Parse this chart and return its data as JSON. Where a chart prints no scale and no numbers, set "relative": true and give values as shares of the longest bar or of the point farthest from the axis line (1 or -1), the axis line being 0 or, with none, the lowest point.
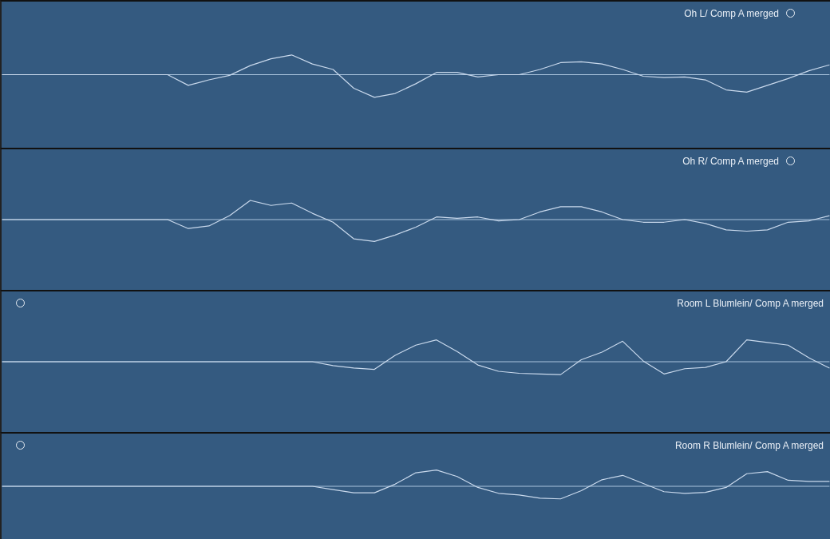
{
  "chart_data": [
    {
      "type": "line",
      "title": "Oh L/ Comp A merged",
      "relative": true,
      "marker": "none",
      "categories": [
        null,
        null,
        null,
        null,
        null,
        null,
        null,
        null,
        null,
        null,
        null,
        null,
        null,
        null,
        null,
        null,
        null,
        null,
        null,
        null,
        null,
        null,
        null,
        null,
        null,
        null,
        null,
        null,
        null,
        null,
        null,
        null,
        null,
        null,
        null,
        null,
        null,
        null,
        null,
        null,
        null
      ],
      "series": [
        {
          "color": "#c9d9ec",
          "values": [
            0,
            0,
            0,
            0,
            0,
            0,
            0,
            0,
            0,
            -0.47,
            -0.23,
            -0.03,
            0.4,
            0.7,
            0.87,
            0.47,
            0.23,
            -0.6,
            -1,
            -0.83,
            -0.4,
            0.1,
            0.1,
            -0.1,
            0,
            0,
            0.23,
            0.53,
            0.57,
            0.47,
            0.23,
            -0.07,
            -0.13,
            -0.1,
            -0.23,
            -0.67,
            -0.77,
            -0.47,
            -0.17,
            0.17,
            0.43
          ]
        }
      ],
      "ref_lines": [
        {
          "axis": "y",
          "value": 0,
          "color": "#a9c3dd"
        }
      ]
    },
    {
      "type": "line",
      "title": "Oh R/ Comp A merged",
      "relative": true,
      "marker": "none",
      "categories": [
        null,
        null,
        null,
        null,
        null,
        null,
        null,
        null,
        null,
        null,
        null,
        null,
        null,
        null,
        null,
        null,
        null,
        null,
        null,
        null,
        null,
        null,
        null,
        null,
        null,
        null,
        null,
        null,
        null,
        null,
        null,
        null,
        null,
        null,
        null,
        null,
        null,
        null,
        null,
        null,
        null
      ],
      "series": [
        {
          "color": "#c9d9ec",
          "values": [
            0,
            0,
            0,
            0,
            0,
            0,
            0,
            0,
            0,
            -0.41,
            -0.29,
            0.18,
            0.88,
            0.65,
            0.76,
            0.29,
            -0.12,
            -0.88,
            -1,
            -0.71,
            -0.35,
            0.12,
            0.06,
            0.12,
            -0.06,
            0,
            0.35,
            0.59,
            0.59,
            0.35,
            0,
            -0.12,
            -0.12,
            0,
            -0.18,
            -0.47,
            -0.53,
            -0.47,
            -0.12,
            -0.06,
            0.18
          ]
        }
      ],
      "ref_lines": [
        {
          "axis": "y",
          "value": 0,
          "color": "#a9c3dd"
        }
      ]
    },
    {
      "type": "line",
      "title": "Room L Blumlein/ Comp A merged",
      "relative": true,
      "marker": "none",
      "categories": [
        null,
        null,
        null,
        null,
        null,
        null,
        null,
        null,
        null,
        null,
        null,
        null,
        null,
        null,
        null,
        null,
        null,
        null,
        null,
        null,
        null,
        null,
        null,
        null,
        null,
        null,
        null,
        null,
        null,
        null,
        null,
        null,
        null,
        null,
        null,
        null,
        null,
        null,
        null,
        null,
        null
      ],
      "series": [
        {
          "color": "#c9d9ec",
          "values": [
            0,
            0,
            0,
            0,
            0,
            0,
            0,
            0,
            0,
            0,
            0,
            0,
            0,
            0,
            0,
            0,
            -0.18,
            -0.29,
            -0.35,
            0.29,
            0.76,
            1,
            0.47,
            -0.15,
            -0.44,
            -0.53,
            -0.56,
            -0.59,
            0.09,
            0.44,
            0.94,
            0.03,
            -0.56,
            -0.32,
            -0.26,
            0,
            1,
            0.88,
            0.76,
            0.18,
            -0.29
          ]
        }
      ],
      "ref_lines": [
        {
          "axis": "y",
          "value": 0,
          "color": "#a9c3dd"
        }
      ]
    },
    {
      "type": "line",
      "title": "Room R Blumlein/ Comp A merged",
      "relative": true,
      "marker": "none",
      "categories": [
        null,
        null,
        null,
        null,
        null,
        null,
        null,
        null,
        null,
        null,
        null,
        null,
        null,
        null,
        null,
        null,
        null,
        null,
        null,
        null,
        null,
        null,
        null,
        null,
        null,
        null,
        null,
        null,
        null,
        null,
        null,
        null,
        null,
        null,
        null,
        null,
        null,
        null,
        null,
        null,
        null
      ],
      "series": [
        {
          "color": "#c9d9ec",
          "values": [
            0,
            0,
            0,
            0,
            0,
            0,
            0,
            0,
            0,
            0,
            0,
            0,
            0,
            0,
            0,
            0,
            -0.2,
            -0.4,
            -0.4,
            0.13,
            0.83,
            1,
            0.6,
            -0.07,
            -0.43,
            -0.53,
            -0.73,
            -0.77,
            -0.27,
            0.4,
            0.67,
            0.17,
            -0.33,
            -0.43,
            -0.37,
            -0.07,
            0.77,
            0.9,
            0.37,
            0.3,
            0.3
          ]
        }
      ],
      "ref_lines": [
        {
          "axis": "y",
          "value": 0,
          "color": "#a9c3dd"
        }
      ]
    }
  ]
}
